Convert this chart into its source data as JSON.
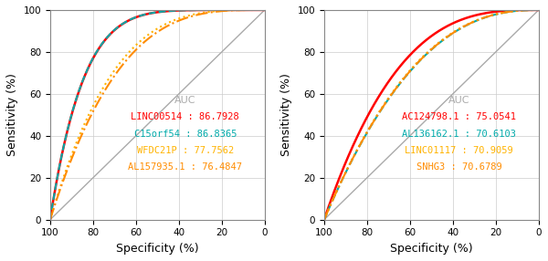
{
  "auc_label": "AUC",
  "panel1": {
    "xlabel": "Specificity (%)",
    "ylabel": "Sensitivity (%)",
    "curves": [
      {
        "label": "LINC00514",
        "auc": "86.7928",
        "color": "#FF0000",
        "linestyle": "solid",
        "auc_value": 0.867928
      },
      {
        "label": "C15orf54",
        "auc": "86.8365",
        "color": "#00AAAA",
        "linestyle": "dashed",
        "auc_value": 0.868365
      },
      {
        "label": "WFDC21P",
        "auc": "77.7562",
        "color": "#FFB300",
        "linestyle": "dotted",
        "auc_value": 0.777562
      },
      {
        "label": "AL157935.1",
        "auc": "76.4847",
        "color": "#FF8C00",
        "linestyle": "dashdot",
        "auc_value": 0.764847
      }
    ]
  },
  "panel2": {
    "xlabel": "Specificity (%)",
    "ylabel": "Sensitivity (%)",
    "curves": [
      {
        "label": "AC124798.1",
        "auc": "75.0541",
        "color": "#FF0000",
        "linestyle": "solid",
        "auc_value": 0.750541
      },
      {
        "label": "AL136162.1",
        "auc": "70.6103",
        "color": "#00AAAA",
        "linestyle": "dashed",
        "auc_value": 0.706103
      },
      {
        "label": "LINC01117",
        "auc": "70.9059",
        "color": "#FFB300",
        "linestyle": "dotted",
        "auc_value": 0.709059
      },
      {
        "label": "SNHG3",
        "auc": "70.6789",
        "color": "#FF8C00",
        "linestyle": "dashdot",
        "auc_value": 0.706789
      }
    ]
  },
  "bg_color": "#FFFFFF",
  "grid_color": "#CCCCCC",
  "diag_color": "#AAAAAA",
  "tick_fontsize": 7.5,
  "label_fontsize": 9,
  "legend_fontsize": 7.5
}
